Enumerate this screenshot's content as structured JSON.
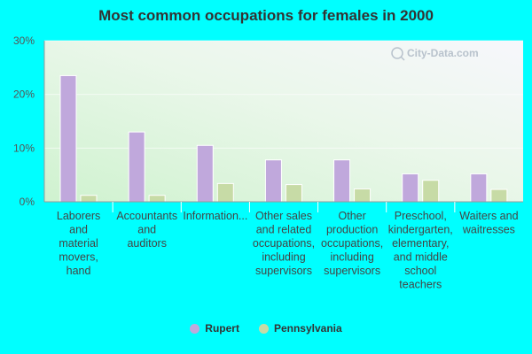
{
  "chart_data": {
    "type": "bar",
    "title": "Most common occupations for females in 2000",
    "categories": [
      "Laborers and material movers, hand",
      "Accountants and auditors",
      "Information...",
      "Other sales and related occupations, including supervisors",
      "Other production occupations, including supervisors",
      "Preschool, kindergarten, elementary, and middle school teachers",
      "Waiters and waitresses"
    ],
    "series": [
      {
        "name": "Rupert",
        "values": [
          23.5,
          13.0,
          10.5,
          7.8,
          7.8,
          5.2,
          5.2
        ],
        "color": "#C0A8DC"
      },
      {
        "name": "Pennsylvania",
        "values": [
          1.2,
          1.2,
          3.4,
          3.2,
          2.4,
          4.0,
          2.3
        ],
        "color": "#C7DBA6"
      }
    ],
    "ylim": [
      0,
      30
    ],
    "yticks": [
      "0%",
      "10%",
      "20%",
      "30%"
    ],
    "grid": true,
    "legend": "bottom-center",
    "watermark": "City-Data.com"
  }
}
